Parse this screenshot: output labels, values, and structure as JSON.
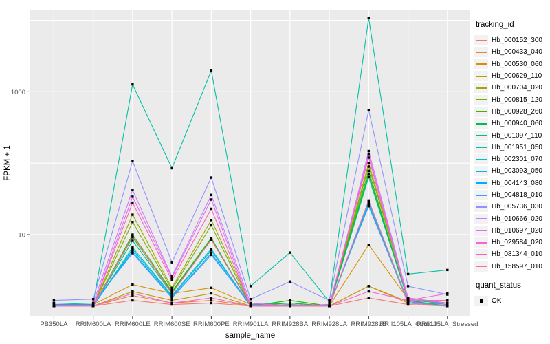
{
  "chart": {
    "y_axis_title": "FPKM + 1",
    "x_axis_title": "sample_name"
  },
  "legend": {
    "tracking_id_title": "tracking_id",
    "quant_status_title": "quant_status",
    "quant_status_items": [
      {
        "label": "OK",
        "shape": "black-square"
      }
    ]
  },
  "chart_data": {
    "type": "line",
    "title": "",
    "xlabel": "sample_name",
    "ylabel": "FPKM + 1",
    "y_scale": "log10",
    "ylim": [
      0.7,
      14000
    ],
    "y_tick_values": [
      10,
      1000
    ],
    "y_tick_labels": [
      "10",
      "1000"
    ],
    "gridline_values": [
      10,
      100,
      1000,
      10000
    ],
    "grid": true,
    "panel_background": "#EBEBEB",
    "grid_color": "#FFFFFF",
    "point_style": {
      "shape": "square",
      "color": "#000000",
      "legend_label": "OK"
    },
    "legend_position": "right",
    "legend_titles": [
      "tracking_id",
      "quant_status"
    ],
    "categories": [
      "PB350LA",
      "RRIM600LA",
      "RRIM600LE",
      "RRIM600SE",
      "RRIM600PE",
      "RRIM901LA",
      "RRIM928BA",
      "RRIM928LA",
      "RRIM928LE",
      "RRII105LA_Control",
      "RRII105LA_Stressed"
    ],
    "series": [
      {
        "name": "Hb_000152_300",
        "color": "#F8766D",
        "values": [
          1,
          1,
          1.2,
          1.05,
          1.1,
          1,
          1,
          1,
          1.3,
          1.05,
          1
        ]
      },
      {
        "name": "Hb_000433_040",
        "color": "#EA8331",
        "values": [
          1,
          1,
          1.4,
          1.1,
          1.2,
          1,
          1,
          1,
          1.9,
          1.1,
          1
        ]
      },
      {
        "name": "Hb_000530_060",
        "color": "#D89000",
        "values": [
          1,
          1.05,
          2.0,
          1.5,
          1.8,
          1.05,
          1.1,
          1,
          7.2,
          1.25,
          1.05
        ]
      },
      {
        "name": "Hb_000629_110",
        "color": "#C09B00",
        "values": [
          1,
          1,
          1.6,
          1.2,
          1.5,
          1,
          1,
          1,
          1.9,
          1.15,
          1
        ]
      },
      {
        "name": "Hb_000704_020",
        "color": "#A3A500",
        "values": [
          1,
          1,
          19,
          1.8,
          16,
          1.05,
          1.1,
          1,
          100,
          1.3,
          1.1
        ]
      },
      {
        "name": "Hb_000815_120",
        "color": "#7CAE00",
        "values": [
          1,
          1,
          15,
          1.7,
          13.5,
          1,
          1.2,
          1,
          90,
          1.3,
          1.1
        ]
      },
      {
        "name": "Hb_000928_260",
        "color": "#39B600",
        "values": [
          1,
          1,
          10,
          1.6,
          9,
          1,
          1.2,
          1,
          78,
          1.2,
          1.1
        ]
      },
      {
        "name": "Hb_000940_060",
        "color": "#00BB4E",
        "values": [
          1,
          1,
          9.2,
          1.55,
          8.7,
          1,
          1.1,
          1,
          70,
          1.2,
          1
        ]
      },
      {
        "name": "Hb_001097_110",
        "color": "#00BF7D",
        "values": [
          1,
          1,
          8.2,
          1.5,
          8.5,
          1.05,
          1.1,
          1,
          64,
          1.2,
          1.1
        ]
      },
      {
        "name": "Hb_001951_050",
        "color": "#00C1A3",
        "values": [
          1.05,
          1.1,
          1270,
          85,
          1980,
          1.9,
          5.6,
          1.15,
          10800,
          2.8,
          3.2
        ]
      },
      {
        "name": "Hb_002301_070",
        "color": "#00BFC4",
        "values": [
          1,
          1,
          6.6,
          1.4,
          6.3,
          1,
          1.05,
          1,
          30,
          1.15,
          1
        ]
      },
      {
        "name": "Hb_003093_050",
        "color": "#00B8E7",
        "values": [
          1,
          1,
          6.2,
          1.35,
          6,
          1,
          1,
          1,
          28,
          1.1,
          1
        ]
      },
      {
        "name": "Hb_004143_080",
        "color": "#00ACFC",
        "values": [
          1.05,
          1.05,
          5.8,
          1.3,
          5.5,
          1,
          1,
          1,
          26,
          1.1,
          1
        ]
      },
      {
        "name": "Hb_004818_010",
        "color": "#35A2FF",
        "values": [
          1.1,
          1.1,
          5.5,
          1.3,
          5.2,
          1.05,
          1,
          1.05,
          25,
          1.15,
          1.05
        ]
      },
      {
        "name": "Hb_005736_030",
        "color": "#9590FF",
        "values": [
          1.2,
          1.25,
          107,
          4.1,
          63,
          1.25,
          2.2,
          1.2,
          555,
          1.9,
          1.45
        ]
      },
      {
        "name": "Hb_010666_020",
        "color": "#C77CFF",
        "values": [
          1.1,
          1.1,
          42,
          2.6,
          36,
          1.1,
          1,
          1,
          148,
          1.3,
          1.1
        ]
      },
      {
        "name": "Hb_010697_020",
        "color": "#E76BF3",
        "values": [
          1,
          1,
          34,
          2.5,
          31,
          1,
          1,
          1,
          132,
          1.25,
          1.1
        ]
      },
      {
        "name": "Hb_029584_020",
        "color": "#FA62DB",
        "values": [
          1,
          1,
          1.5,
          1.1,
          1.3,
          1,
          1,
          1,
          1.6,
          1.2,
          1.5
        ]
      },
      {
        "name": "Hb_081344_010",
        "color": "#FF62BC",
        "values": [
          1,
          1,
          28,
          2.3,
          23,
          1,
          1,
          1,
          120,
          1.2,
          1.2
        ]
      },
      {
        "name": "Hb_158597_010",
        "color": "#FF6A98",
        "values": [
          1,
          1,
          9.5,
          1.5,
          8.5,
          1,
          1,
          1,
          30,
          1.1,
          1
        ]
      }
    ]
  }
}
